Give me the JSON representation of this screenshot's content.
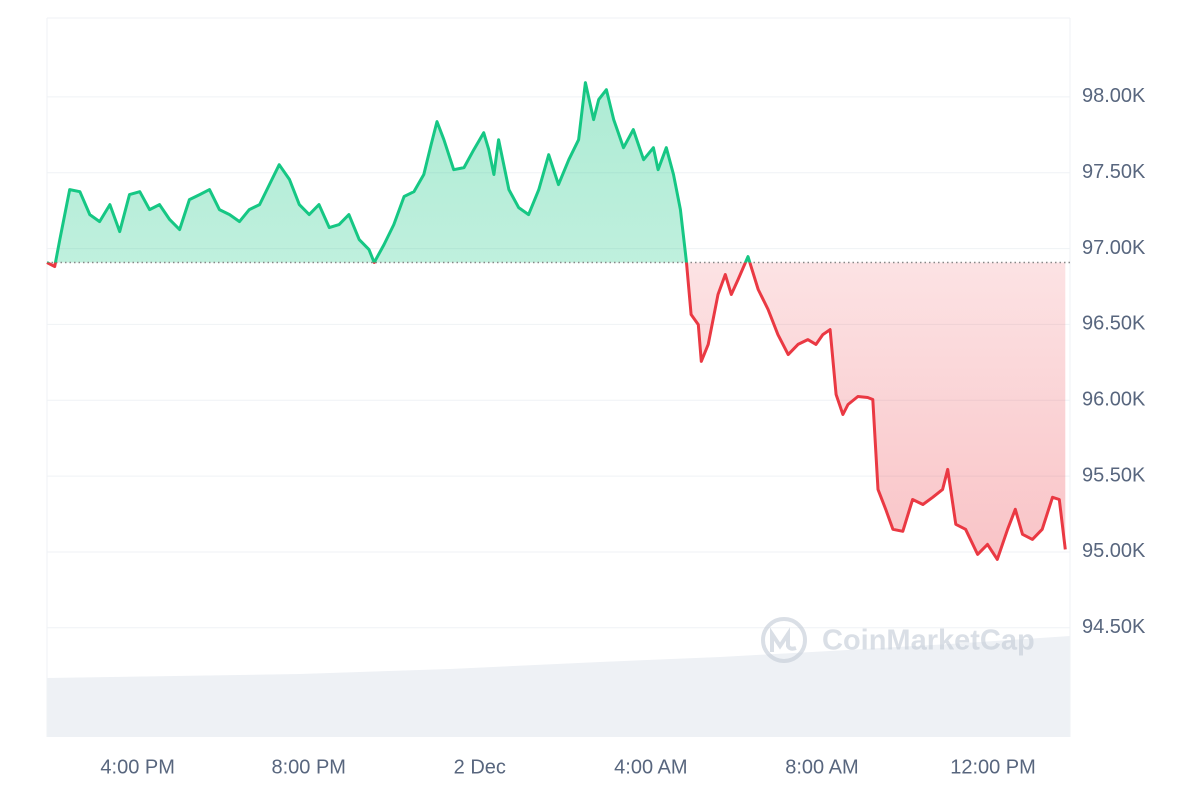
{
  "chart_data": {
    "type": "line",
    "x": [
      13.88,
      14.06,
      14.18,
      14.41,
      14.65,
      14.88,
      15.11,
      15.35,
      15.58,
      15.81,
      16.05,
      16.28,
      16.51,
      16.75,
      16.98,
      17.21,
      17.45,
      17.68,
      17.91,
      18.15,
      18.38,
      18.61,
      18.85,
      19.08,
      19.31,
      19.55,
      19.78,
      20.01,
      20.24,
      20.48,
      20.71,
      20.94,
      21.18,
      21.41,
      21.53,
      21.76,
      21.99,
      22.23,
      22.46,
      22.69,
      22.86,
      23.0,
      23.16,
      23.39,
      23.63,
      23.86,
      24.09,
      24.21,
      24.33,
      24.44,
      24.68,
      24.91,
      25.14,
      25.38,
      25.61,
      25.84,
      26.08,
      26.31,
      26.47,
      26.66,
      26.78,
      26.96,
      27.13,
      27.36,
      27.59,
      27.83,
      28.06,
      28.17,
      28.36,
      28.53,
      28.69,
      28.83,
      28.94,
      29.11,
      29.18,
      29.34,
      29.57,
      29.74,
      29.88,
      30.04,
      30.27,
      30.51,
      30.74,
      30.97,
      31.21,
      31.44,
      31.67,
      31.86,
      32.02,
      32.19,
      32.33,
      32.49,
      32.61,
      32.84,
      33.07,
      33.19,
      33.31,
      33.49,
      33.66,
      33.89,
      34.12,
      34.36,
      34.59,
      34.82,
      34.94,
      35.13,
      35.36,
      35.64,
      35.87,
      36.1,
      36.34,
      36.52,
      36.69,
      36.92,
      37.15,
      37.39,
      37.55,
      37.69
    ],
    "values": [
      96908,
      96881,
      97059,
      97389,
      97375,
      97224,
      97178,
      97290,
      97112,
      97356,
      97375,
      97257,
      97290,
      97191,
      97125,
      97323,
      97356,
      97389,
      97257,
      97224,
      97178,
      97257,
      97290,
      97422,
      97553,
      97455,
      97290,
      97224,
      97290,
      97138,
      97158,
      97224,
      97059,
      96993,
      96908,
      97026,
      97158,
      97343,
      97375,
      97488,
      97685,
      97837,
      97718,
      97520,
      97534,
      97652,
      97764,
      97652,
      97488,
      97718,
      97389,
      97270,
      97224,
      97389,
      97619,
      97422,
      97586,
      97718,
      98094,
      97850,
      97982,
      98047,
      97850,
      97665,
      97784,
      97586,
      97665,
      97520,
      97665,
      97488,
      97257,
      96914,
      96565,
      96499,
      96256,
      96368,
      96697,
      96829,
      96697,
      96796,
      96947,
      96730,
      96598,
      96433,
      96301,
      96368,
      96400,
      96368,
      96433,
      96466,
      96038,
      95906,
      95972,
      96025,
      96018,
      96005,
      95412,
      95281,
      95149,
      95136,
      95346,
      95313,
      95360,
      95412,
      95544,
      95182,
      95149,
      94984,
      95050,
      94951,
      95149,
      95281,
      95116,
      95083,
      95149,
      95360,
      95346,
      95017
    ],
    "up_color": "#16c784",
    "down_color": "#ea3943",
    "xlim": [
      13.88,
      37.8
    ],
    "ylim": [
      93780,
      98520
    ],
    "xticks": [
      {
        "value": 16,
        "label": "4:00 PM"
      },
      {
        "value": 20,
        "label": "8:00 PM"
      },
      {
        "value": 24,
        "label": "2 Dec"
      },
      {
        "value": 28,
        "label": "4:00 AM"
      },
      {
        "value": 32,
        "label": "8:00 AM"
      },
      {
        "value": 36,
        "label": "12:00 PM"
      }
    ],
    "yticks": [
      {
        "value": 98000,
        "label": "98.00K"
      },
      {
        "value": 97500,
        "label": "97.50K"
      },
      {
        "value": 97000,
        "label": "97.00K"
      },
      {
        "value": 96500,
        "label": "96.50K"
      },
      {
        "value": 96000,
        "label": "96.00K"
      },
      {
        "value": 95500,
        "label": "95.50K"
      },
      {
        "value": 95000,
        "label": "95.00K"
      },
      {
        "value": 94500,
        "label": "94.50K"
      }
    ],
    "grid": true,
    "watermark": "CoinMarketCap"
  }
}
